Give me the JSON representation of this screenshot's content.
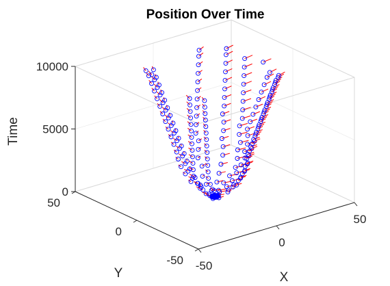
{
  "chart_data": {
    "type": "scatter3d",
    "title": "Position Over Time",
    "xlabel": "X",
    "ylabel": "Y",
    "zlabel": "Time",
    "xlim": [
      -50,
      50
    ],
    "ylim": [
      -50,
      50
    ],
    "zlim": [
      0,
      10000
    ],
    "xticks": [
      -50,
      0,
      50
    ],
    "yticks": [
      -50,
      0,
      50
    ],
    "zticks": [
      0,
      5000,
      10000
    ],
    "grid": true,
    "marker": "circle",
    "marker_color": "#0000ff",
    "quiver_color": "#ff0000",
    "series": [
      {
        "points": [
          [
            1,
            -2,
            0
          ],
          [
            -1,
            1,
            0
          ],
          [
            2,
            1,
            0
          ],
          [
            0,
            0,
            0
          ],
          [
            -2,
            -1,
            0
          ],
          [
            1,
            2,
            0
          ],
          [
            3,
            0,
            300
          ],
          [
            -3,
            1,
            300
          ],
          [
            0,
            -3,
            300
          ],
          [
            2,
            3,
            300
          ],
          [
            -2,
            -3,
            300
          ],
          [
            4,
            2,
            300
          ],
          [
            -4,
            -1,
            300
          ],
          [
            1,
            4,
            300
          ],
          [
            6,
            -2,
            700
          ],
          [
            -6,
            2,
            700
          ],
          [
            0,
            7,
            700
          ],
          [
            4,
            -6,
            700
          ],
          [
            -4,
            6,
            700
          ],
          [
            8,
            3,
            700
          ],
          [
            -8,
            -3,
            700
          ],
          [
            2,
            -8,
            700
          ],
          [
            -3,
            8,
            700
          ],
          [
            6,
            6,
            700
          ],
          [
            8,
            -4,
            1200
          ],
          [
            -8,
            4,
            1200
          ],
          [
            0,
            10,
            1200
          ],
          [
            5,
            -9,
            1200
          ],
          [
            -7,
            -7,
            1200
          ],
          [
            11,
            2,
            1200
          ],
          [
            -11,
            -2,
            1200
          ],
          [
            3,
            -11,
            1200
          ],
          [
            -4,
            11,
            1200
          ],
          [
            9,
            8,
            1200
          ],
          [
            -9,
            8,
            1200
          ],
          [
            6,
            -10,
            1200
          ],
          [
            10,
            -5,
            1800
          ],
          [
            -12,
            3,
            1800
          ],
          [
            2,
            13,
            1800
          ],
          [
            7,
            -12,
            1800
          ],
          [
            -10,
            -9,
            1800
          ],
          [
            14,
            1,
            1800
          ],
          [
            -14,
            -4,
            1800
          ],
          [
            4,
            -14,
            1800
          ],
          [
            -5,
            14,
            1800
          ],
          [
            11,
            9,
            1800
          ],
          [
            -11,
            10,
            1800
          ],
          [
            8,
            -11,
            1800
          ],
          [
            12,
            -6,
            2400
          ],
          [
            -14,
            4,
            2400
          ],
          [
            1,
            15,
            2400
          ],
          [
            8,
            -14,
            2400
          ],
          [
            -12,
            -10,
            2400
          ],
          [
            16,
            2,
            2400
          ],
          [
            -16,
            -3,
            2400
          ],
          [
            5,
            -16,
            2400
          ],
          [
            -6,
            15,
            2400
          ],
          [
            13,
            10,
            2400
          ],
          [
            -13,
            11,
            2400
          ],
          [
            9,
            -13,
            2400
          ],
          [
            13,
            -8,
            3000
          ],
          [
            -15,
            5,
            3000
          ],
          [
            2,
            16,
            3000
          ],
          [
            9,
            -15,
            3000
          ],
          [
            -13,
            -11,
            3000
          ],
          [
            17,
            3,
            3000
          ],
          [
            -17,
            -4,
            3000
          ],
          [
            6,
            -17,
            3000
          ],
          [
            -7,
            16,
            3000
          ],
          [
            14,
            11,
            3000
          ],
          [
            -14,
            12,
            3000
          ],
          [
            10,
            -14,
            3000
          ],
          [
            12,
            -9,
            3600
          ],
          [
            -16,
            6,
            3600
          ],
          [
            3,
            17,
            3600
          ],
          [
            10,
            -15,
            3600
          ],
          [
            -14,
            -12,
            3600
          ],
          [
            18,
            2,
            3600
          ],
          [
            -18,
            -5,
            3600
          ],
          [
            7,
            -17,
            3600
          ],
          [
            -8,
            17,
            3600
          ],
          [
            14,
            12,
            3600
          ],
          [
            -15,
            12,
            3600
          ],
          [
            11,
            -13,
            3600
          ],
          [
            13,
            -10,
            4200
          ],
          [
            -17,
            7,
            4200
          ],
          [
            2,
            18,
            4200
          ],
          [
            11,
            -16,
            4200
          ],
          [
            -15,
            -13,
            4200
          ],
          [
            18,
            3,
            4200
          ],
          [
            -19,
            -6,
            4200
          ],
          [
            8,
            -18,
            4200
          ],
          [
            -9,
            18,
            4200
          ],
          [
            15,
            12,
            4200
          ],
          [
            -16,
            13,
            4200
          ],
          [
            12,
            -14,
            4200
          ],
          [
            14,
            -9,
            4800
          ],
          [
            -18,
            8,
            4800
          ],
          [
            3,
            19,
            4800
          ],
          [
            12,
            -17,
            4800
          ],
          [
            -16,
            -14,
            4800
          ],
          [
            19,
            4,
            4800
          ],
          [
            -20,
            -7,
            4800
          ],
          [
            9,
            -19,
            4800
          ],
          [
            -10,
            19,
            4800
          ],
          [
            16,
            13,
            4800
          ],
          [
            -17,
            14,
            4800
          ],
          [
            13,
            -15,
            4800
          ],
          [
            13,
            -10,
            5400
          ],
          [
            -19,
            9,
            5400
          ],
          [
            4,
            20,
            5400
          ],
          [
            12,
            -18,
            5400
          ],
          [
            -17,
            -15,
            5400
          ],
          [
            20,
            3,
            5400
          ],
          [
            -21,
            -8,
            5400
          ],
          [
            10,
            -20,
            5400
          ],
          [
            -11,
            20,
            5400
          ],
          [
            16,
            14,
            5400
          ],
          [
            -18,
            15,
            5400
          ],
          [
            14,
            -16,
            5400
          ],
          [
            14,
            -11,
            6000
          ],
          [
            -20,
            10,
            6000
          ],
          [
            5,
            21,
            6000
          ],
          [
            13,
            -19,
            6000
          ],
          [
            -18,
            -16,
            6000
          ],
          [
            21,
            4,
            6000
          ],
          [
            -22,
            -9,
            6000
          ],
          [
            11,
            -21,
            6000
          ],
          [
            -12,
            21,
            6000
          ],
          [
            17,
            14,
            6000
          ],
          [
            -19,
            16,
            6000
          ],
          [
            15,
            -17,
            6000
          ],
          [
            15,
            -12,
            6600
          ],
          [
            -21,
            11,
            6600
          ],
          [
            6,
            22,
            6600
          ],
          [
            14,
            -20,
            6600
          ],
          [
            -19,
            -17,
            6600
          ],
          [
            22,
            5,
            6600
          ],
          [
            -23,
            -10,
            6600
          ],
          [
            12,
            -22,
            6600
          ],
          [
            -13,
            22,
            6600
          ],
          [
            18,
            15,
            6600
          ],
          [
            -20,
            17,
            6600
          ],
          [
            16,
            -18,
            6600
          ],
          [
            16,
            -13,
            7200
          ],
          [
            -22,
            12,
            7200
          ],
          [
            7,
            23,
            7200
          ],
          [
            15,
            -21,
            7200
          ],
          [
            -20,
            -18,
            7200
          ],
          [
            23,
            6,
            7200
          ],
          [
            -24,
            -11,
            7200
          ],
          [
            13,
            -23,
            7200
          ],
          [
            -14,
            23,
            7200
          ],
          [
            19,
            16,
            7200
          ],
          [
            -21,
            18,
            7200
          ],
          [
            17,
            -19,
            7200
          ],
          [
            17,
            -14,
            7800
          ],
          [
            -23,
            13,
            7800
          ],
          [
            8,
            24,
            7800
          ],
          [
            16,
            -22,
            7800
          ],
          [
            -21,
            -19,
            7800
          ],
          [
            24,
            7,
            7800
          ],
          [
            -25,
            -12,
            7800
          ],
          [
            14,
            -24,
            7800
          ],
          [
            -15,
            24,
            7800
          ],
          [
            20,
            17,
            7800
          ],
          [
            -22,
            19,
            7800
          ],
          [
            18,
            -20,
            7800
          ],
          [
            18,
            -15,
            8400
          ],
          [
            -24,
            14,
            8400
          ],
          [
            9,
            25,
            8400
          ],
          [
            17,
            -23,
            8400
          ],
          [
            -22,
            -20,
            8400
          ],
          [
            25,
            8,
            8400
          ],
          [
            -26,
            -13,
            8400
          ],
          [
            15,
            -25,
            8400
          ],
          [
            -16,
            25,
            8400
          ],
          [
            21,
            18,
            8400
          ],
          [
            -23,
            20,
            8400
          ],
          [
            19,
            -21,
            8400
          ],
          [
            19,
            -16,
            9000
          ],
          [
            -25,
            15,
            9000
          ],
          [
            10,
            26,
            9000
          ],
          [
            18,
            -24,
            9000
          ],
          [
            -23,
            -21,
            9000
          ],
          [
            26,
            9,
            9000
          ],
          [
            -27,
            -14,
            9000
          ],
          [
            16,
            -26,
            9000
          ],
          [
            -17,
            26,
            9000
          ],
          [
            22,
            19,
            9000
          ],
          [
            -24,
            21,
            9000
          ],
          [
            20,
            -22,
            9000
          ],
          [
            20,
            -17,
            9600
          ],
          [
            -26,
            16,
            9600
          ],
          [
            11,
            27,
            9600
          ],
          [
            19,
            -25,
            9600
          ],
          [
            -24,
            -22,
            9600
          ],
          [
            27,
            10,
            9600
          ],
          [
            -28,
            -15,
            9600
          ],
          [
            17,
            -27,
            9600
          ],
          [
            -18,
            27,
            9600
          ],
          [
            23,
            20,
            9600
          ],
          [
            -25,
            22,
            9600
          ],
          [
            21,
            -23,
            9600
          ],
          [
            21,
            -18,
            10000
          ],
          [
            -27,
            17,
            10000
          ],
          [
            12,
            28,
            10000
          ],
          [
            20,
            -26,
            10000
          ],
          [
            27,
            -5,
            10000
          ],
          [
            24,
            21,
            10000
          ],
          [
            -26,
            23,
            10000
          ],
          [
            22,
            -24,
            10000
          ]
        ]
      }
    ]
  }
}
